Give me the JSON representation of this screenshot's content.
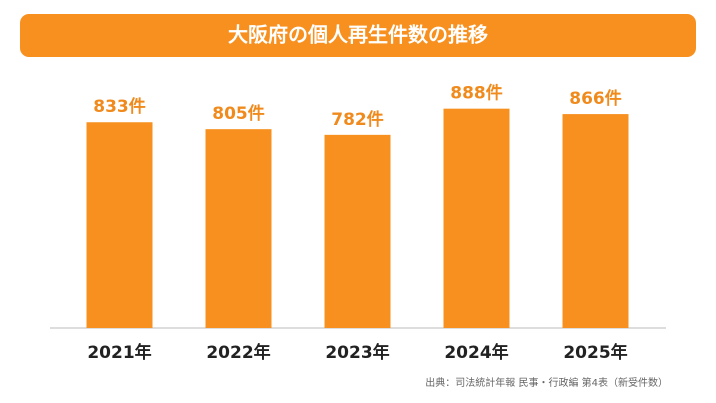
{
  "chart_data": {
    "type": "bar",
    "title": "大阪府の個人再生件数の推移",
    "categories": [
      "2021年",
      "2022年",
      "2023年",
      "2024年",
      "2025年"
    ],
    "values": [
      833,
      805,
      782,
      888,
      866
    ],
    "value_labels": [
      "833件",
      "805件",
      "782件",
      "888件",
      "866件"
    ],
    "color": "#f7901e",
    "ylim": [
      0,
      1000
    ],
    "source": "出典：司法統計年報 民事・行政編 第4表（新受件数）"
  }
}
